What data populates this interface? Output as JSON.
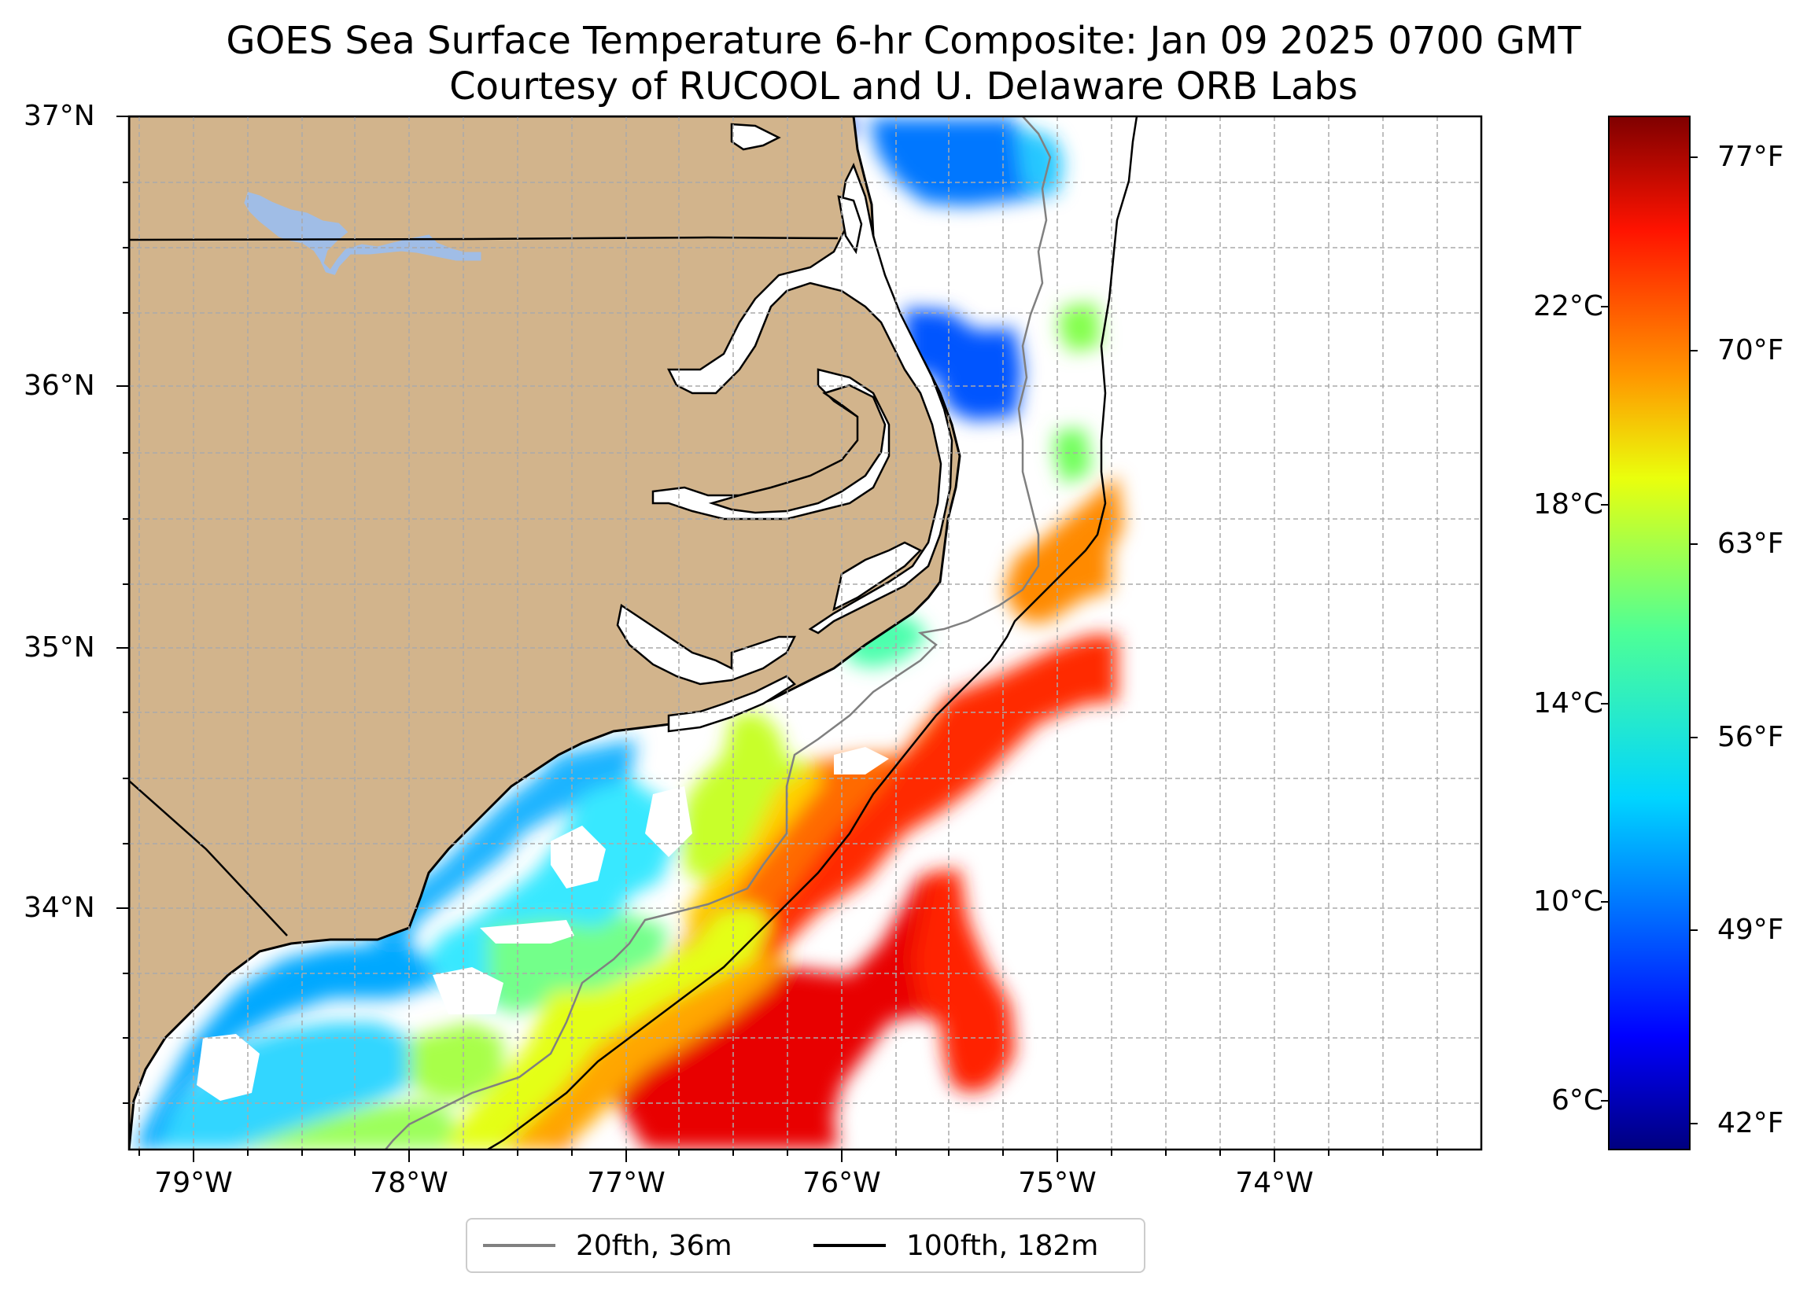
{
  "title": {
    "line1": "GOES Sea Surface Temperature 6-hr Composite: Jan 09 2025 0700 GMT",
    "line2": "Courtesy of RUCOOL and U. Delaware ORB Labs"
  },
  "map": {
    "extent": {
      "lon_min": -79.3,
      "lon_max": -73.0,
      "lat_min": 33.1,
      "lat_max": 37.0
    },
    "land_color": "#d2b48c",
    "ocean_color": "#ffffff",
    "lake_color": "#a0bde6",
    "grid": true,
    "lat_ticks": [
      "37°N",
      "36°N",
      "35°N",
      "34°N"
    ],
    "lon_ticks": [
      "79°W",
      "78°W",
      "77°W",
      "76°W",
      "75°W",
      "74°W"
    ]
  },
  "colorbar": {
    "colormap": "jet",
    "range_f": [
      40,
      80
    ],
    "celsius_ticks": [
      "22°C",
      "18°C",
      "14°C",
      "10°C",
      "6°C"
    ],
    "fahrenheit_ticks": [
      "77°F",
      "70°F",
      "63°F",
      "56°F",
      "49°F",
      "42°F"
    ]
  },
  "legend": {
    "items": [
      {
        "label": "20fth, 36m",
        "color": "#808080"
      },
      {
        "label": "100fth, 182m",
        "color": "#000000"
      }
    ]
  }
}
